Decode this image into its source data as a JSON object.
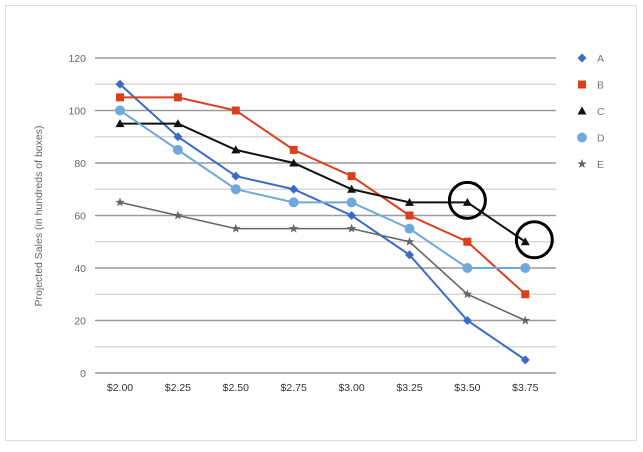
{
  "chart_data": {
    "type": "line",
    "title": "",
    "xlabel": "",
    "ylabel": "Projected Sales (in hundreds of boxes)",
    "categories": [
      "$2.00",
      "$2.25",
      "$2.50",
      "$2.75",
      "$3.00",
      "$3.25",
      "$3.50",
      "$3.75"
    ],
    "ylim": [
      0,
      120
    ],
    "yticks": [
      0,
      20,
      40,
      60,
      80,
      100,
      120
    ],
    "grid": true,
    "legend_position": "right",
    "series": [
      {
        "name": "A",
        "color": "#3a6cc6",
        "marker": "diamond",
        "values": [
          110,
          90,
          75,
          70,
          60,
          45,
          20,
          5
        ]
      },
      {
        "name": "B",
        "color": "#d9411e",
        "marker": "square",
        "values": [
          105,
          105,
          100,
          85,
          75,
          60,
          50,
          30
        ]
      },
      {
        "name": "C",
        "color": "#111111",
        "marker": "triangle",
        "values": [
          95,
          95,
          85,
          80,
          70,
          65,
          65,
          50
        ]
      },
      {
        "name": "D",
        "color": "#6fa8dc",
        "marker": "circle",
        "values": [
          100,
          85,
          70,
          65,
          65,
          55,
          40,
          40
        ]
      },
      {
        "name": "E",
        "color": "#666666",
        "marker": "star",
        "values": [
          65,
          60,
          55,
          55,
          55,
          50,
          30,
          20
        ]
      }
    ],
    "annotations": [
      {
        "type": "circle",
        "series": "C",
        "category": "$3.50",
        "value": 65
      },
      {
        "type": "circle",
        "series": "C",
        "category": "$3.75",
        "value": 50
      }
    ]
  }
}
